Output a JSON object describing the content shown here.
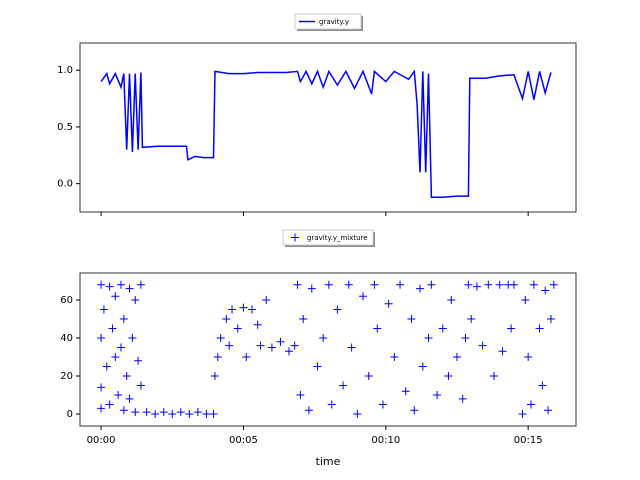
{
  "chart_data": [
    {
      "type": "line",
      "x": [
        0.0,
        0.2,
        0.3,
        0.5,
        0.7,
        0.8,
        0.9,
        1.0,
        1.1,
        1.2,
        1.3,
        1.4,
        1.45,
        2.0,
        2.5,
        3.0,
        3.05,
        3.3,
        3.6,
        3.95,
        4.0,
        4.5,
        5.0,
        5.5,
        6.0,
        6.5,
        6.9,
        7.0,
        7.2,
        7.4,
        7.6,
        7.8,
        8.0,
        8.3,
        8.6,
        8.9,
        9.2,
        9.5,
        9.6,
        10.0,
        10.3,
        10.8,
        11.0,
        11.1,
        11.2,
        11.3,
        11.4,
        11.5,
        11.6,
        12.0,
        12.5,
        12.9,
        12.95,
        13.5,
        14.0,
        14.5,
        14.8,
        15.0,
        15.2,
        15.4,
        15.6,
        15.8
      ],
      "series": [
        {
          "name": "gravity.y",
          "color": "#0000ff",
          "values": [
            0.9,
            0.97,
            0.88,
            0.97,
            0.85,
            0.97,
            0.3,
            0.97,
            0.28,
            0.97,
            0.3,
            0.98,
            0.32,
            0.33,
            0.33,
            0.33,
            0.21,
            0.24,
            0.23,
            0.23,
            0.99,
            0.97,
            0.97,
            0.98,
            0.98,
            0.98,
            0.99,
            0.9,
            0.99,
            0.88,
            0.99,
            0.85,
            0.99,
            0.87,
            0.99,
            0.84,
            0.99,
            0.79,
            0.99,
            0.9,
            0.99,
            0.92,
            0.99,
            0.7,
            0.1,
            0.99,
            0.1,
            0.97,
            -0.12,
            -0.12,
            -0.11,
            -0.11,
            0.93,
            0.93,
            0.95,
            0.96,
            0.75,
            0.99,
            0.74,
            0.99,
            0.8,
            0.98
          ]
        }
      ],
      "xlim": [
        -0.74,
        16.68
      ],
      "ylim": [
        -0.25,
        1.24
      ],
      "xticks": [
        0,
        5,
        10,
        15
      ],
      "yticks": [
        {
          "value": 0,
          "label": "0.0"
        },
        {
          "value": 0.5,
          "label": "0.5"
        },
        {
          "value": 1,
          "label": "1.0"
        }
      ]
    },
    {
      "type": "scatter",
      "x": [
        0.0,
        0.0,
        0.0,
        0.0,
        0.1,
        0.2,
        0.3,
        0.3,
        0.4,
        0.5,
        0.5,
        0.6,
        0.7,
        0.7,
        0.8,
        0.8,
        0.9,
        1.0,
        1.0,
        1.1,
        1.2,
        1.2,
        1.3,
        1.4,
        1.4,
        1.6,
        1.9,
        2.2,
        2.5,
        2.8,
        3.1,
        3.4,
        3.7,
        3.95,
        4.0,
        4.1,
        4.2,
        4.4,
        4.5,
        4.6,
        4.8,
        5.0,
        5.1,
        5.3,
        5.5,
        5.6,
        5.8,
        6.0,
        6.3,
        6.6,
        6.8,
        6.9,
        7.0,
        7.1,
        7.3,
        7.4,
        7.6,
        7.8,
        8.0,
        8.1,
        8.3,
        8.5,
        8.7,
        8.8,
        9.0,
        9.2,
        9.4,
        9.6,
        9.7,
        9.9,
        10.1,
        10.3,
        10.5,
        10.7,
        10.9,
        11.0,
        11.2,
        11.3,
        11.5,
        11.6,
        11.8,
        12.0,
        12.2,
        12.3,
        12.5,
        12.7,
        12.8,
        12.9,
        13.0,
        13.2,
        13.4,
        13.6,
        13.8,
        14.0,
        14.1,
        14.3,
        14.4,
        14.5,
        14.8,
        14.9,
        15.0,
        15.1,
        15.2,
        15.4,
        15.5,
        15.6,
        15.7,
        15.8,
        15.9
      ],
      "series": [
        {
          "name": "gravity.y_mixture",
          "color": "#0000ff",
          "values": [
            68,
            40,
            14,
            3,
            55,
            25,
            67,
            5,
            45,
            30,
            62,
            10,
            68,
            35,
            50,
            2,
            20,
            66,
            8,
            40,
            60,
            1,
            28,
            68,
            15,
            1,
            0,
            1,
            0,
            1,
            0,
            1,
            0,
            0,
            20,
            30,
            40,
            50,
            36,
            55,
            45,
            56,
            30,
            55,
            47,
            36,
            60,
            35,
            38,
            33,
            36,
            68,
            10,
            50,
            2,
            66,
            25,
            40,
            68,
            5,
            55,
            15,
            68,
            35,
            0,
            62,
            20,
            68,
            45,
            5,
            58,
            30,
            68,
            12,
            50,
            2,
            66,
            25,
            40,
            68,
            10,
            45,
            20,
            60,
            30,
            8,
            40,
            68,
            50,
            67,
            36,
            68,
            20,
            68,
            33,
            68,
            45,
            68,
            0,
            60,
            30,
            5,
            68,
            45,
            15,
            65,
            2,
            50,
            68
          ]
        }
      ],
      "xlim": [
        -0.74,
        16.68
      ],
      "ylim": [
        -6.3,
        74.2
      ],
      "xticks": [
        {
          "value": 0,
          "label": "00:00"
        },
        {
          "value": 5,
          "label": "00:05"
        },
        {
          "value": 10,
          "label": "00:10"
        },
        {
          "value": 15,
          "label": "00:15"
        }
      ],
      "yticks": [
        0,
        20,
        40,
        60
      ],
      "x_label": "time"
    }
  ]
}
